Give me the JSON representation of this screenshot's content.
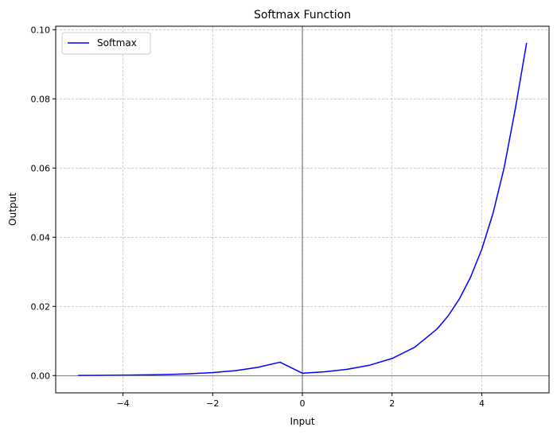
{
  "chart_data": {
    "type": "line",
    "title": "Softmax Function",
    "xlabel": "Input",
    "ylabel": "Output",
    "xlim": [
      -5.5,
      5.5
    ],
    "ylim": [
      -0.005,
      0.101
    ],
    "x_ticks": [
      -4,
      -2,
      0,
      2,
      4
    ],
    "x_tick_labels": [
      "−4",
      "−2",
      "0",
      "2",
      "4"
    ],
    "y_ticks": [
      0.0,
      0.02,
      0.04,
      0.06,
      0.08,
      0.1
    ],
    "y_tick_labels": [
      "0.00",
      "0.02",
      "0.04",
      "0.06",
      "0.08",
      "0.10"
    ],
    "grid": true,
    "legend_position": "top-left",
    "series": [
      {
        "name": "Softmax",
        "color": "#0000ff",
        "x": [
          -5.0,
          -4.5,
          -4.0,
          -3.5,
          -3.0,
          -2.5,
          -2.0,
          -1.5,
          -1.0,
          -0.5,
          0.0,
          0.5,
          1.0,
          1.5,
          2.0,
          2.5,
          3.0,
          3.25,
          3.5,
          3.75,
          4.0,
          4.25,
          4.5,
          4.75,
          5.0
        ],
        "y": [
          4e-05,
          7e-05,
          0.00012,
          0.00019,
          0.00032,
          0.00052,
          0.00086,
          0.00142,
          0.00235,
          0.00387,
          0.00067,
          0.0011,
          0.00182,
          0.003,
          0.00494,
          0.00815,
          0.01343,
          0.01725,
          0.02214,
          0.02843,
          0.0365,
          0.04687,
          0.06018,
          0.07727,
          0.0962
        ]
      }
    ]
  }
}
